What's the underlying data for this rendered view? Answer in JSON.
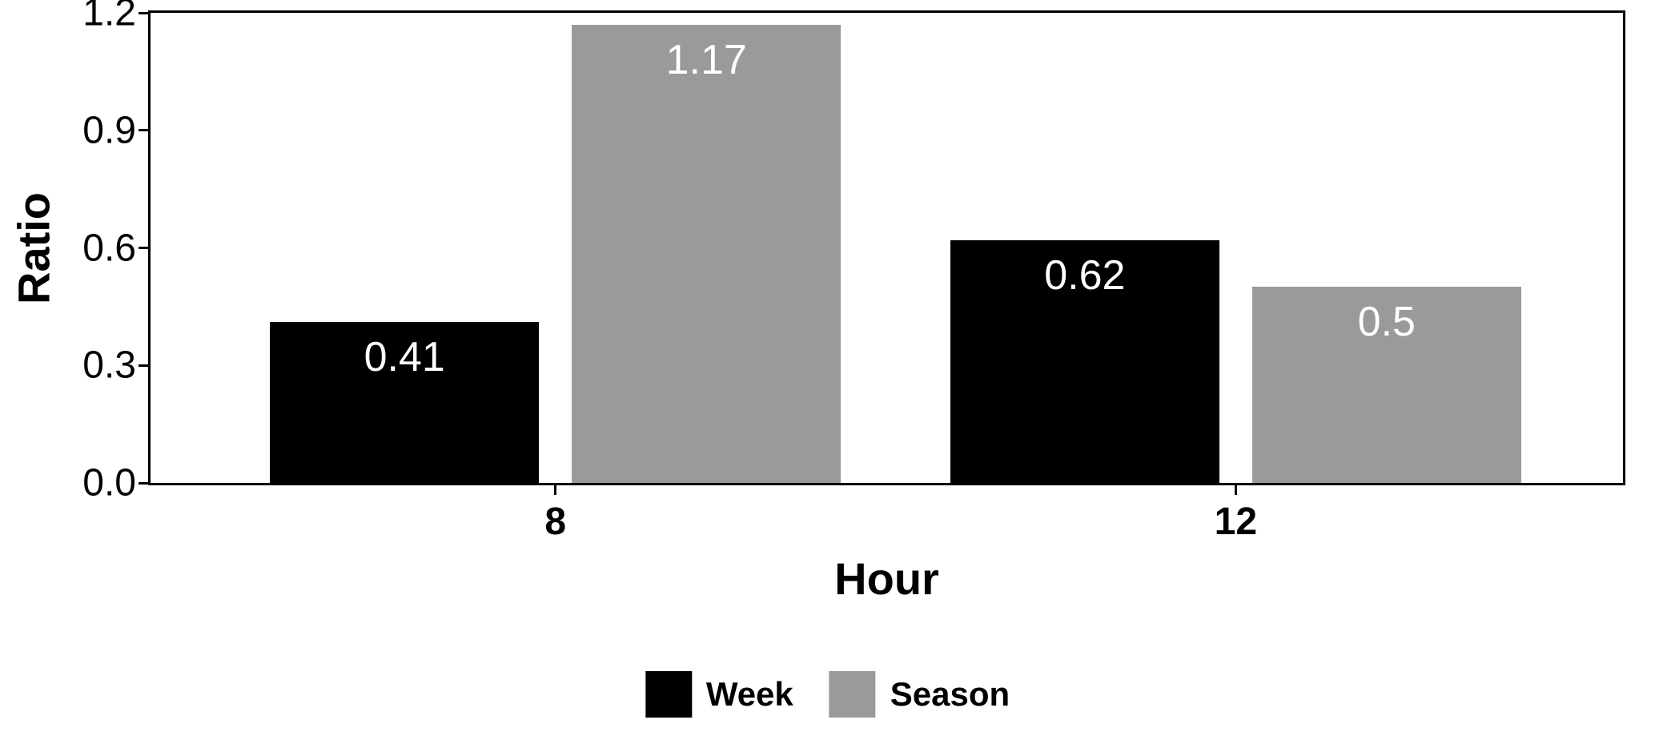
{
  "chart_data": {
    "type": "bar",
    "title": "",
    "xlabel": "Hour",
    "ylabel": "Ratio",
    "categories": [
      "8",
      "12"
    ],
    "series": [
      {
        "name": "Week",
        "color": "#000000",
        "values": [
          0.41,
          0.62
        ],
        "labels": [
          "0.41",
          "0.62"
        ]
      },
      {
        "name": "Season",
        "color": "#9a9a9a",
        "values": [
          1.17,
          0.5
        ],
        "labels": [
          "1.17",
          "0.5"
        ]
      }
    ],
    "ylim": [
      0,
      1.2
    ],
    "yticks": [
      "0.0",
      "0.3",
      "0.6",
      "0.9",
      "1.2"
    ],
    "grid": false,
    "legend_position": "bottom",
    "bar_label_color": "#ffffff",
    "panel_border_color": "#000000"
  }
}
